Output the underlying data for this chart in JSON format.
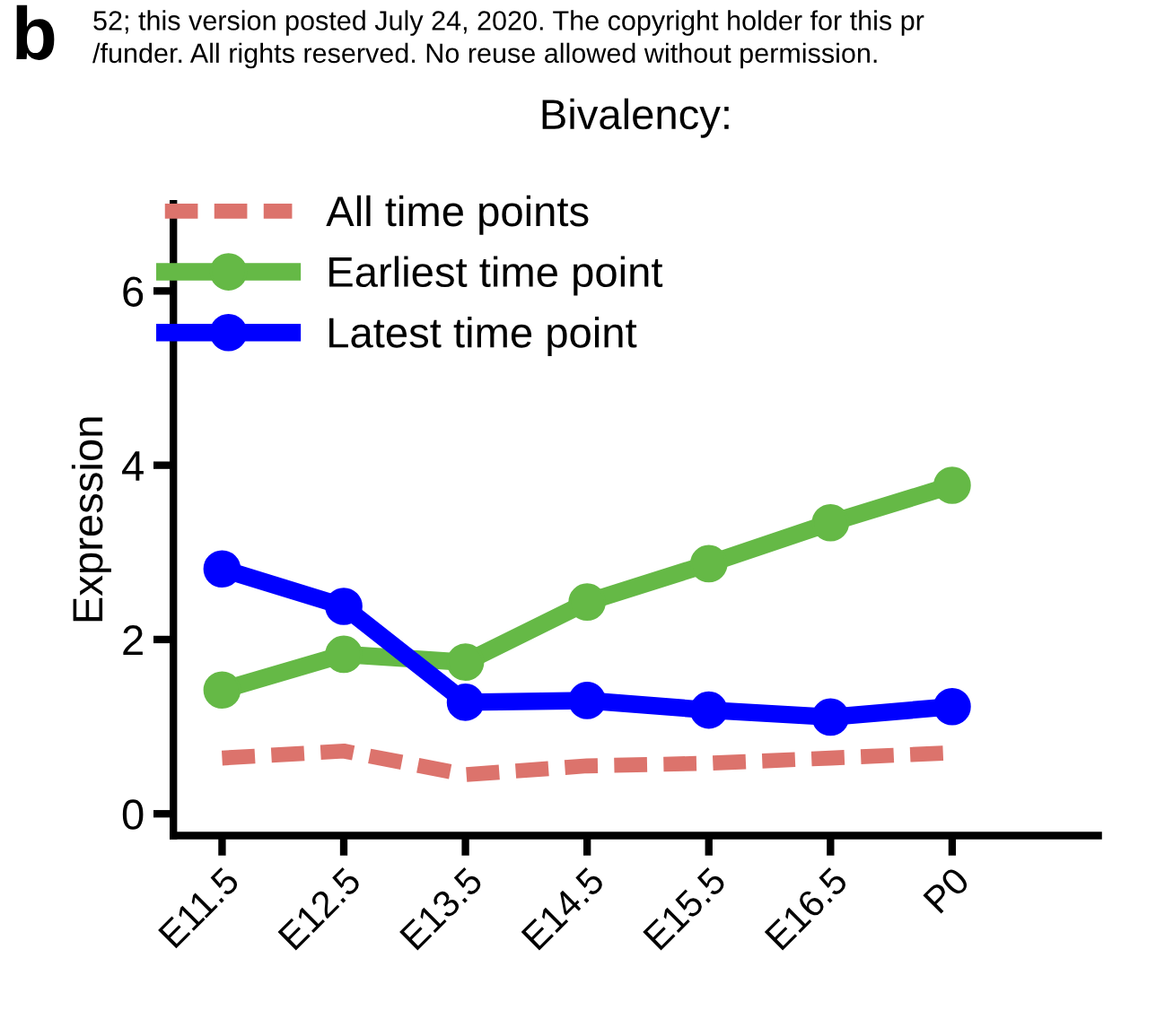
{
  "chart_data": {
    "type": "line",
    "title": "Bivalency:",
    "ylabel": "Expression",
    "annotations": [
      "b",
      "52; this version posted July 24, 2020. The copyright holder for this pr",
      "/funder. All rights reserved. No reuse allowed without permission."
    ],
    "categories": [
      "E11.5",
      "E12.5",
      "E13.5",
      "E14.5",
      "E15.5",
      "E16.5",
      "P0"
    ],
    "series": [
      {
        "name": "All time points",
        "color": "#dc736c",
        "line_style": "dashed",
        "marker": "none",
        "values": [
          0.64,
          0.72,
          0.45,
          0.55,
          0.58,
          0.64,
          0.7
        ]
      },
      {
        "name": "Earliest time point",
        "color": "#65b946",
        "line_style": "solid",
        "marker": "circle",
        "values": [
          1.42,
          1.83,
          1.74,
          2.43,
          2.87,
          3.34,
          3.77
        ]
      },
      {
        "name": "Latest time point",
        "color": "#0000ff",
        "line_style": "solid",
        "marker": "circle",
        "values": [
          2.81,
          2.38,
          1.28,
          1.3,
          1.19,
          1.11,
          1.23
        ]
      }
    ],
    "ylim": [
      -0.25,
      7
    ],
    "yticks": [
      0,
      2,
      4,
      6
    ],
    "grid": false,
    "legend": "top left"
  }
}
